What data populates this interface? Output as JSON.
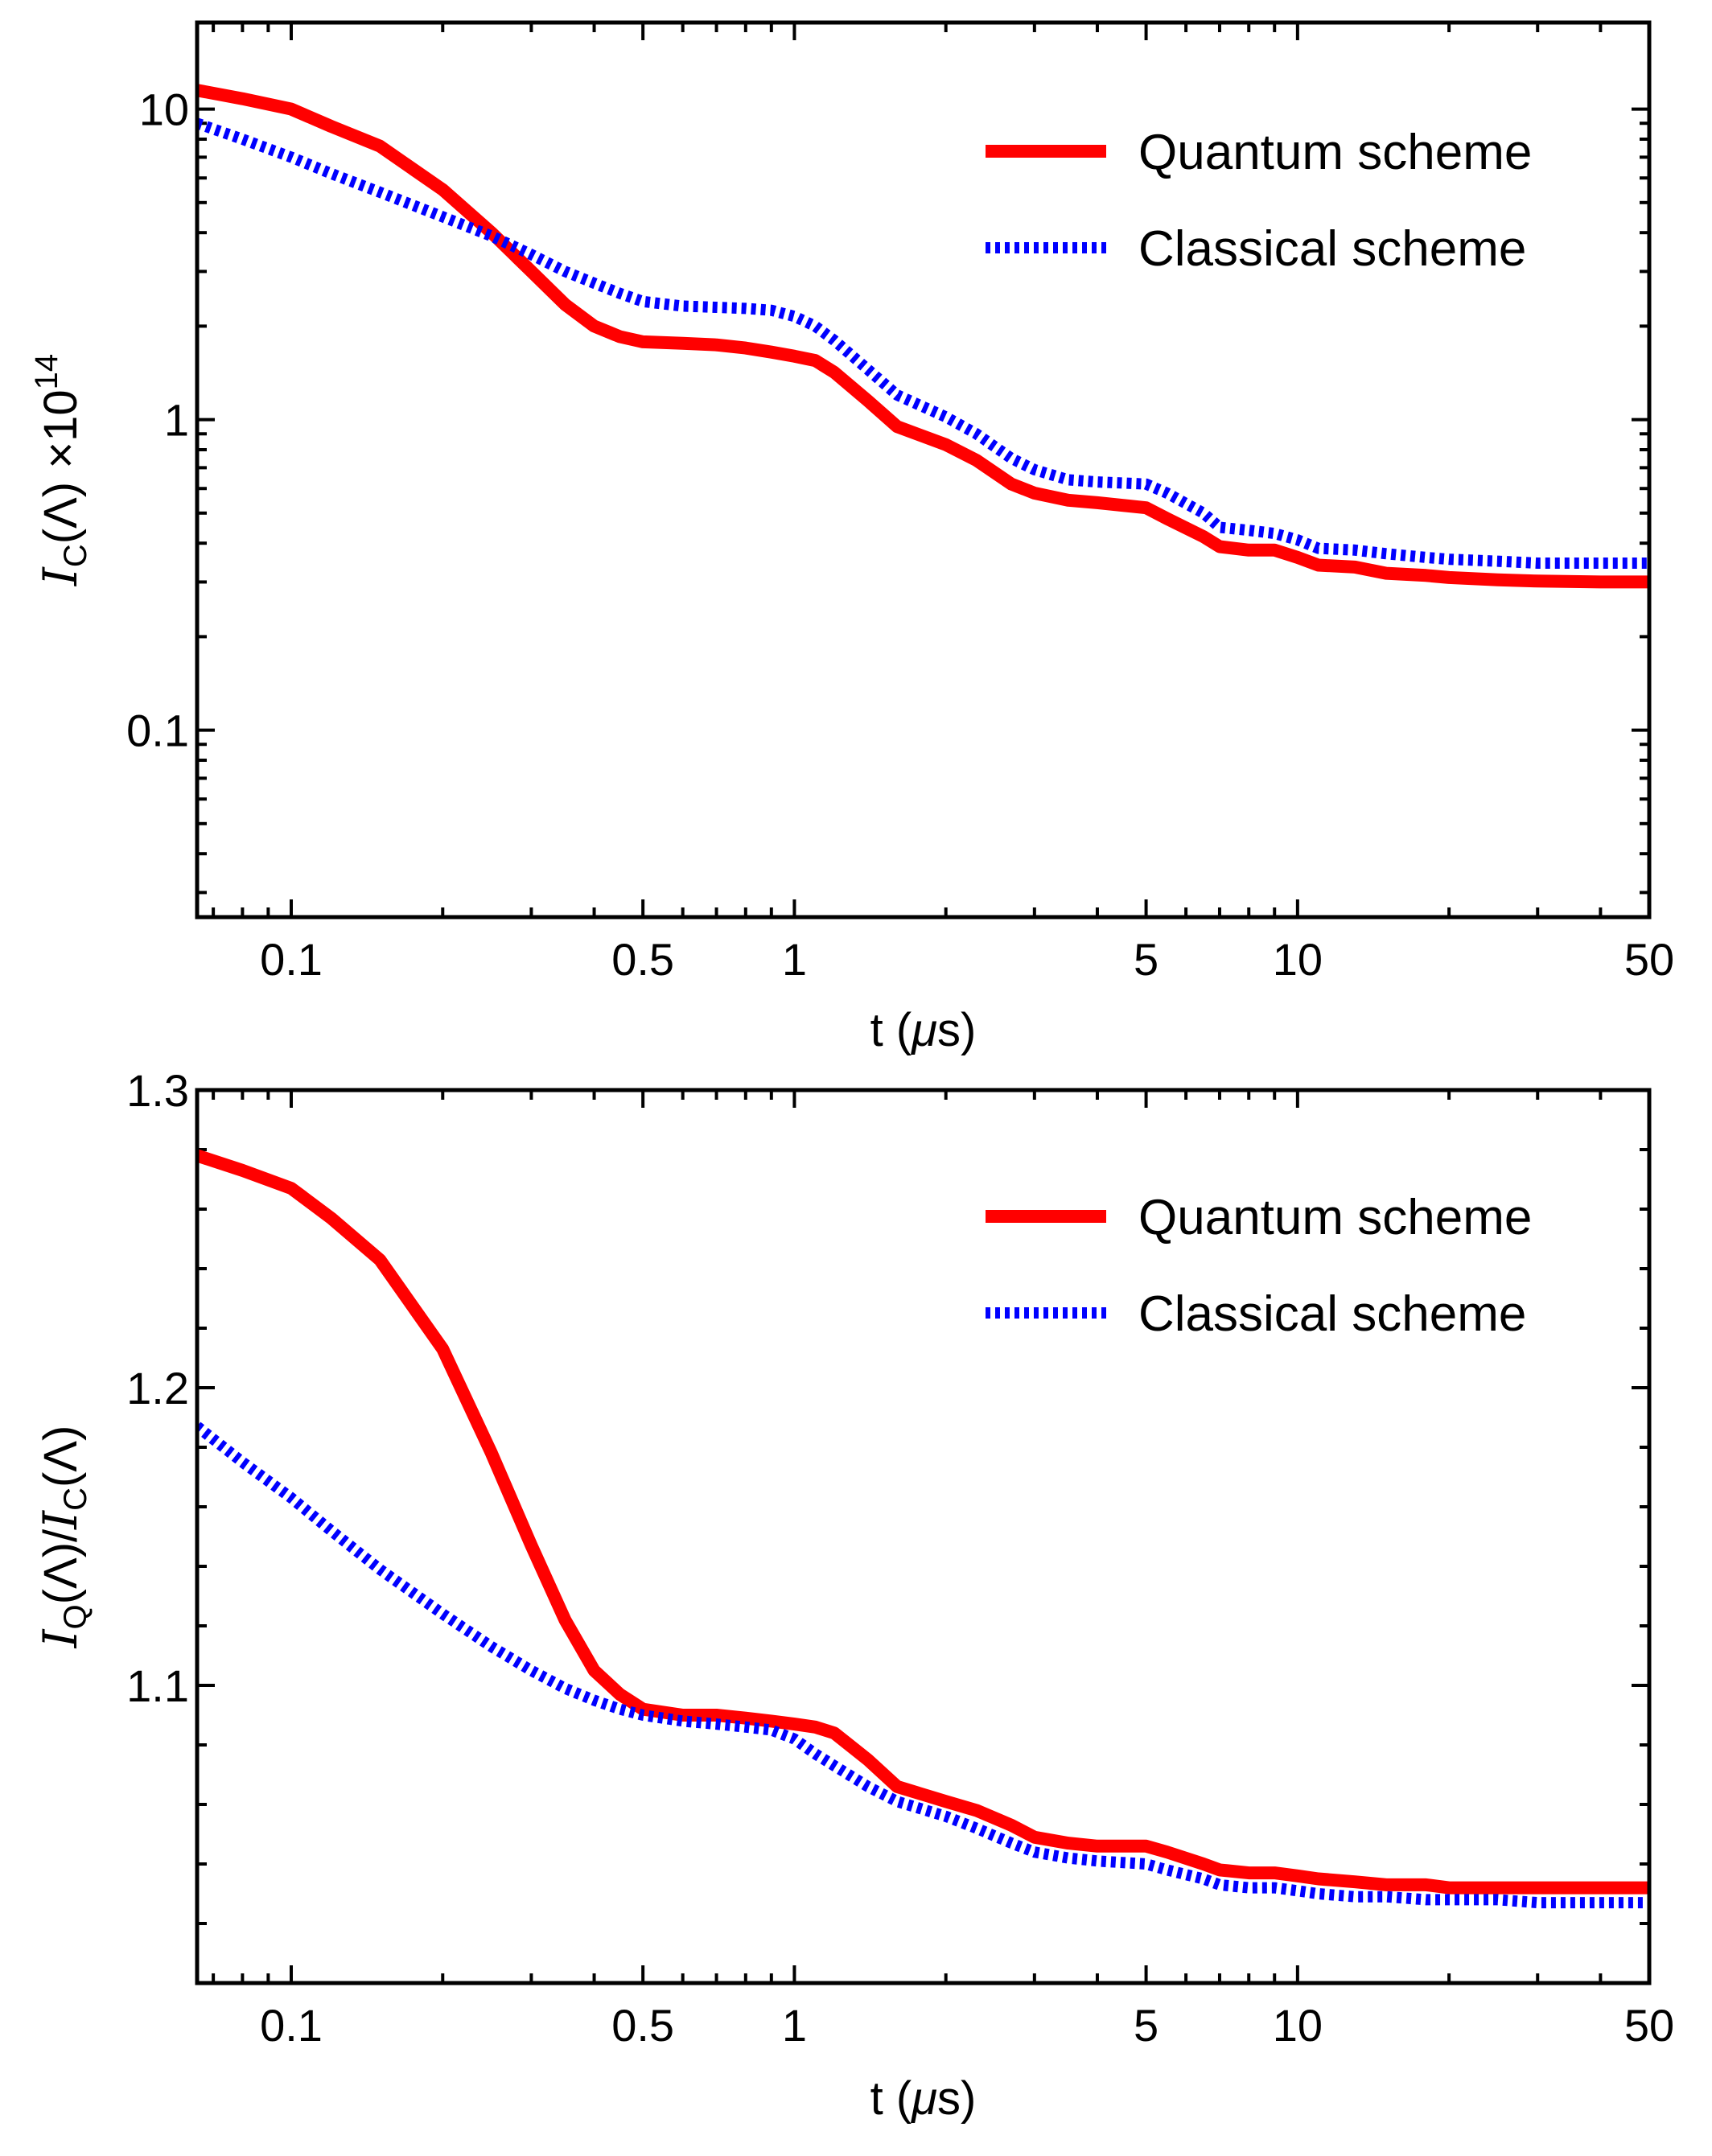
{
  "chart_data": [
    {
      "type": "line",
      "xscale": "log",
      "yscale": "log",
      "xlim": [
        0.065,
        50
      ],
      "ylim": [
        0.025,
        19
      ],
      "xticks": [
        {
          "value": 0.1,
          "label": "0.1"
        },
        {
          "value": 0.5,
          "label": "0.5"
        },
        {
          "value": 1,
          "label": "1"
        },
        {
          "value": 5,
          "label": "5"
        },
        {
          "value": 10,
          "label": "10"
        },
        {
          "value": 50,
          "label": "50"
        }
      ],
      "yticks": [
        {
          "value": 0.1,
          "label": "0.1"
        },
        {
          "value": 1,
          "label": "1"
        },
        {
          "value": 10,
          "label": "10"
        }
      ],
      "xlabel": {
        "main": "t (",
        "mu": "μ",
        "end": "s)"
      },
      "ylabel": {
        "symbol": "I",
        "sub": "C",
        "arg": "(Λ) ×10",
        "sup": "14"
      },
      "legend_position": "top-right",
      "series": [
        {
          "name": "Quantum scheme",
          "color": "#ff0000",
          "style": "solid",
          "x": [
            0.065,
            0.08,
            0.1,
            0.12,
            0.15,
            0.2,
            0.25,
            0.3,
            0.35,
            0.4,
            0.45,
            0.5,
            0.6,
            0.7,
            0.8,
            0.9,
            1.0,
            1.1,
            1.2,
            1.4,
            1.6,
            2.0,
            2.3,
            2.7,
            3.0,
            3.5,
            4.0,
            5.0,
            5.5,
            6.5,
            7.0,
            8.0,
            9.0,
            10.0,
            11.0,
            13.0,
            15.0,
            18.0,
            20.0,
            25.0,
            30.0,
            40.0,
            50.0
          ],
          "y": [
            11.5,
            10.8,
            10.0,
            8.8,
            7.6,
            5.5,
            4.0,
            3.0,
            2.35,
            2.0,
            1.85,
            1.78,
            1.76,
            1.74,
            1.7,
            1.65,
            1.6,
            1.55,
            1.42,
            1.15,
            0.95,
            0.83,
            0.74,
            0.62,
            0.58,
            0.55,
            0.54,
            0.52,
            0.48,
            0.42,
            0.39,
            0.38,
            0.38,
            0.36,
            0.34,
            0.335,
            0.32,
            0.315,
            0.31,
            0.305,
            0.302,
            0.3,
            0.3
          ]
        },
        {
          "name": "Classical scheme",
          "color": "#0000ff",
          "style": "dotted",
          "x": [
            0.065,
            0.08,
            0.1,
            0.12,
            0.15,
            0.2,
            0.25,
            0.3,
            0.35,
            0.4,
            0.45,
            0.5,
            0.6,
            0.7,
            0.8,
            0.9,
            1.0,
            1.1,
            1.2,
            1.4,
            1.6,
            2.0,
            2.3,
            2.7,
            3.0,
            3.5,
            4.0,
            5.0,
            5.5,
            6.5,
            7.0,
            8.0,
            9.0,
            10.0,
            11.0,
            13.0,
            15.0,
            18.0,
            20.0,
            25.0,
            30.0,
            40.0,
            50.0
          ],
          "y": [
            9.0,
            8.0,
            7.0,
            6.2,
            5.4,
            4.5,
            3.9,
            3.4,
            3.0,
            2.75,
            2.55,
            2.4,
            2.32,
            2.3,
            2.28,
            2.25,
            2.15,
            2.0,
            1.8,
            1.45,
            1.2,
            1.02,
            0.9,
            0.75,
            0.69,
            0.64,
            0.63,
            0.62,
            0.58,
            0.5,
            0.45,
            0.44,
            0.43,
            0.41,
            0.385,
            0.38,
            0.37,
            0.36,
            0.355,
            0.35,
            0.345,
            0.345,
            0.345
          ]
        }
      ]
    },
    {
      "type": "line",
      "xscale": "log",
      "yscale": "linear",
      "xlim": [
        0.065,
        50
      ],
      "ylim": [
        1.0,
        1.3
      ],
      "xticks": [
        {
          "value": 0.1,
          "label": "0.1"
        },
        {
          "value": 0.5,
          "label": "0.5"
        },
        {
          "value": 1,
          "label": "1"
        },
        {
          "value": 5,
          "label": "5"
        },
        {
          "value": 10,
          "label": "10"
        },
        {
          "value": 50,
          "label": "50"
        }
      ],
      "yticks": [
        {
          "value": 1.1,
          "label": "1.1"
        },
        {
          "value": 1.2,
          "label": "1.2"
        },
        {
          "value": 1.3,
          "label": "1.3"
        }
      ],
      "xlabel": {
        "main": "t (",
        "mu": "μ",
        "end": "s)"
      },
      "ylabel": {
        "symbol": "I",
        "sub": "Q",
        "arg": "(Λ)/",
        "symbol2": "I",
        "sub2": "C",
        "arg2": "(Λ)"
      },
      "legend_position": "top-right",
      "series": [
        {
          "name": "Quantum scheme",
          "color": "#ff0000",
          "style": "solid",
          "x": [
            0.065,
            0.08,
            0.1,
            0.12,
            0.15,
            0.2,
            0.25,
            0.3,
            0.35,
            0.4,
            0.45,
            0.5,
            0.6,
            0.7,
            0.8,
            0.9,
            1.0,
            1.1,
            1.2,
            1.4,
            1.6,
            2.0,
            2.3,
            2.7,
            3.0,
            3.5,
            4.0,
            5.0,
            5.5,
            6.5,
            7.0,
            8.0,
            9.0,
            10.0,
            11.0,
            13.0,
            15.0,
            18.0,
            20.0,
            25.0,
            30.0,
            40.0,
            50.0
          ],
          "y": [
            1.278,
            1.273,
            1.267,
            1.257,
            1.243,
            1.213,
            1.178,
            1.147,
            1.122,
            1.105,
            1.097,
            1.092,
            1.09,
            1.09,
            1.089,
            1.088,
            1.087,
            1.086,
            1.084,
            1.075,
            1.066,
            1.061,
            1.058,
            1.053,
            1.049,
            1.047,
            1.046,
            1.046,
            1.044,
            1.04,
            1.038,
            1.037,
            1.037,
            1.036,
            1.035,
            1.034,
            1.033,
            1.033,
            1.032,
            1.032,
            1.032,
            1.032,
            1.032
          ]
        },
        {
          "name": "Classical scheme",
          "color": "#0000ff",
          "style": "dotted",
          "x": [
            0.065,
            0.08,
            0.1,
            0.12,
            0.15,
            0.2,
            0.25,
            0.3,
            0.35,
            0.4,
            0.45,
            0.5,
            0.6,
            0.7,
            0.8,
            0.9,
            1.0,
            1.1,
            1.2,
            1.4,
            1.6,
            2.0,
            2.3,
            2.7,
            3.0,
            3.5,
            4.0,
            5.0,
            5.5,
            6.5,
            7.0,
            8.0,
            9.0,
            10.0,
            11.0,
            13.0,
            15.0,
            18.0,
            20.0,
            25.0,
            30.0,
            40.0,
            50.0
          ],
          "y": [
            1.187,
            1.175,
            1.163,
            1.152,
            1.139,
            1.124,
            1.113,
            1.105,
            1.099,
            1.095,
            1.092,
            1.09,
            1.088,
            1.087,
            1.086,
            1.085,
            1.082,
            1.077,
            1.073,
            1.066,
            1.061,
            1.056,
            1.052,
            1.047,
            1.044,
            1.042,
            1.041,
            1.04,
            1.038,
            1.035,
            1.033,
            1.032,
            1.032,
            1.031,
            1.03,
            1.029,
            1.029,
            1.028,
            1.028,
            1.028,
            1.027,
            1.027,
            1.027
          ]
        }
      ]
    }
  ]
}
